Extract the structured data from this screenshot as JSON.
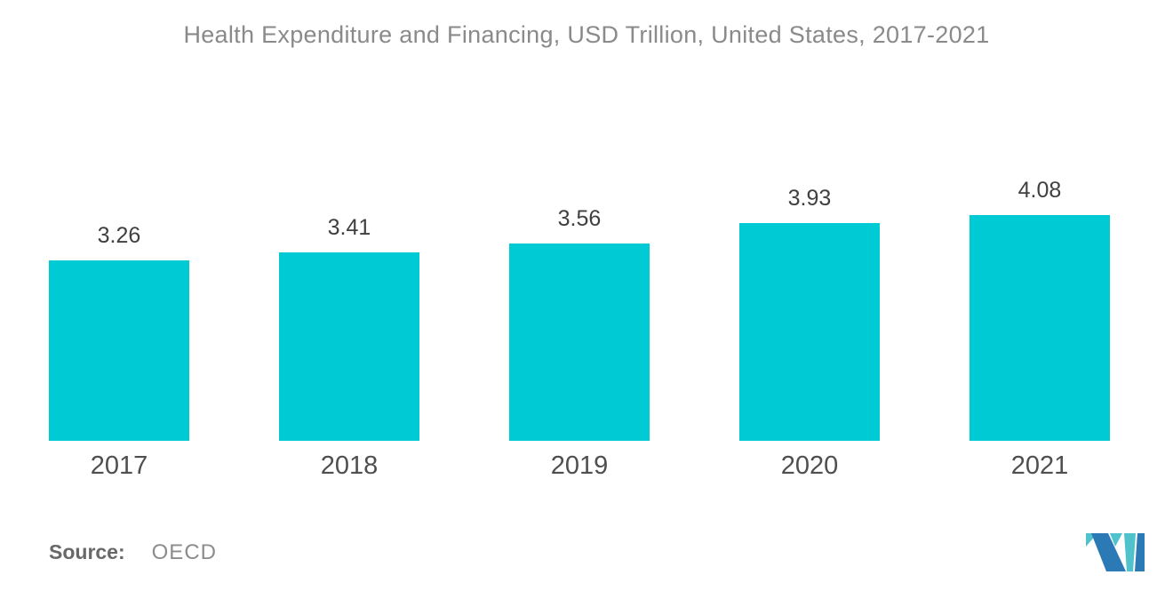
{
  "title": "Health Expenditure and Financing, USD Trillion, United States, 2017-2021",
  "chart_data": {
    "type": "bar",
    "title": "Health Expenditure and Financing, USD Trillion, United States, 2017-2021",
    "categories": [
      "2017",
      "2018",
      "2019",
      "2020",
      "2021"
    ],
    "values": [
      3.26,
      3.41,
      3.56,
      3.93,
      4.08
    ],
    "value_labels": [
      "3.26",
      "3.41",
      "3.56",
      "3.93",
      "4.08"
    ],
    "unit": "USD Trillion",
    "xlabel": "",
    "ylabel": "",
    "ylim": [
      0,
      6.7
    ],
    "grid": false,
    "legend": "none",
    "bar_color": "#00CAD3",
    "value_label_color": "#404040",
    "axis_label_color": "#4F4F4F",
    "title_color": "#8A8A8A"
  },
  "source": {
    "label": "Source:",
    "value": "OECD"
  },
  "logo": {
    "name": "mordor-intelligence-logo",
    "colors": {
      "blue": "#2B79B5",
      "teal": "#4FC2CC"
    }
  }
}
